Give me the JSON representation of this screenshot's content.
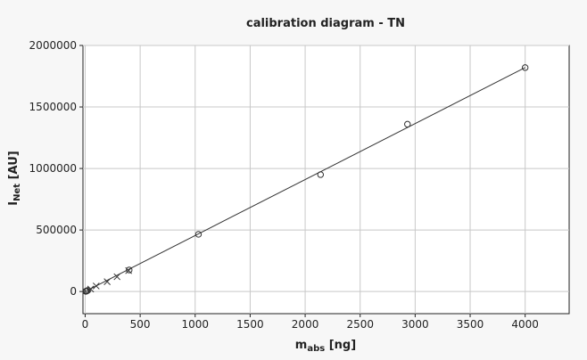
{
  "chart_data": {
    "type": "scatter",
    "title": "calibration diagram - TN",
    "xlabel": {
      "main": "m",
      "sub": "abs",
      "unit": " [ng]"
    },
    "ylabel": {
      "main": "I",
      "sub": "Net",
      "unit": " [AU]"
    },
    "xlim": [
      -20,
      4400
    ],
    "ylim": [
      -180000,
      2000000
    ],
    "x_ticks": [
      0,
      500,
      1000,
      1500,
      2000,
      2500,
      3000,
      3500,
      4000
    ],
    "y_ticks": [
      0,
      500000,
      1000000,
      1500000,
      2000000
    ],
    "grid": true,
    "series": [
      {
        "marker": "circle",
        "points": [
          {
            "x": 5,
            "y": 1000
          },
          {
            "x": 10,
            "y": 3000
          },
          {
            "x": 15,
            "y": 5000
          },
          {
            "x": 25,
            "y": 10000
          },
          {
            "x": 400,
            "y": 175000
          },
          {
            "x": 1030,
            "y": 465000
          },
          {
            "x": 2140,
            "y": 950000
          },
          {
            "x": 2930,
            "y": 1360000
          },
          {
            "x": 4000,
            "y": 1820000
          }
        ]
      },
      {
        "marker": "cross",
        "points": [
          {
            "x": 50,
            "y": 20000
          },
          {
            "x": 100,
            "y": 45000
          },
          {
            "x": 200,
            "y": 80000
          },
          {
            "x": 290,
            "y": 120000
          },
          {
            "x": 395,
            "y": 170000
          }
        ]
      }
    ],
    "fit_line": {
      "x": [
        0,
        4000
      ],
      "y": [
        0,
        1820000
      ]
    }
  }
}
